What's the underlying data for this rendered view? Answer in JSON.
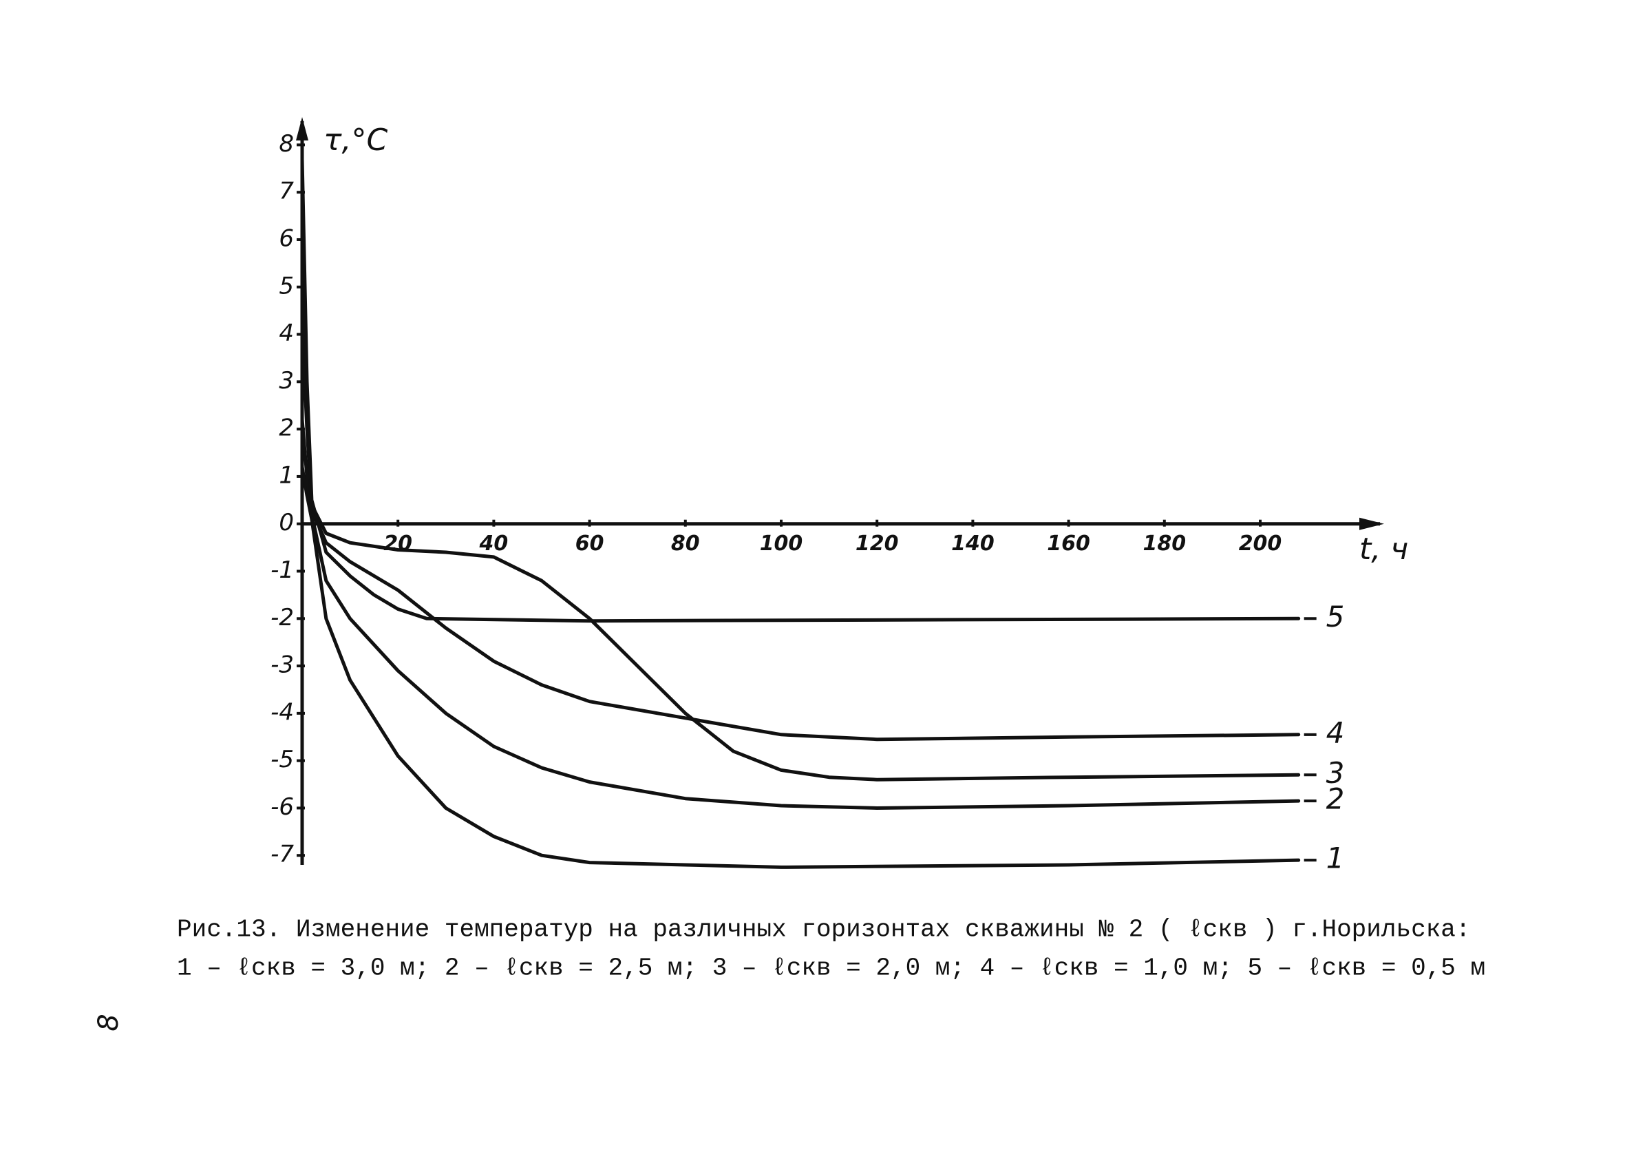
{
  "chart_data": {
    "type": "line",
    "y_label": "τ,°C",
    "x_label": "t, ч",
    "xlim": [
      0,
      225
    ],
    "ylim": [
      -7.2,
      8.5
    ],
    "xticks": [
      20,
      40,
      60,
      80,
      100,
      120,
      140,
      160,
      180,
      200
    ],
    "yticks": [
      -7,
      -6,
      -5,
      -4,
      -3,
      -2,
      -1,
      0,
      1,
      2,
      3,
      4,
      5,
      6,
      7,
      8
    ],
    "grid": false,
    "series": [
      {
        "name": "1",
        "color": "#111111",
        "x": [
          0,
          1,
          2,
          5,
          10,
          20,
          30,
          40,
          50,
          60,
          80,
          100,
          160,
          208
        ],
        "values": [
          1.2,
          0.6,
          0.1,
          -2.0,
          -3.3,
          -4.9,
          -6.0,
          -6.6,
          -7.0,
          -7.15,
          -7.2,
          -7.25,
          -7.2,
          -7.1
        ]
      },
      {
        "name": "2",
        "color": "#111111",
        "x": [
          0,
          1,
          2,
          5,
          10,
          20,
          30,
          40,
          50,
          60,
          80,
          100,
          120,
          160,
          208
        ],
        "values": [
          2.2,
          1.0,
          0.2,
          -1.2,
          -2.0,
          -3.1,
          -4.0,
          -4.7,
          -5.15,
          -5.45,
          -5.8,
          -5.95,
          -6.0,
          -5.95,
          -5.85
        ]
      },
      {
        "name": "3",
        "color": "#111111",
        "x": [
          0,
          1,
          2,
          5,
          10,
          20,
          30,
          40,
          50,
          60,
          70,
          80,
          90,
          100,
          110,
          120,
          160,
          208
        ],
        "values": [
          4.2,
          2.0,
          0.4,
          -0.2,
          -0.4,
          -0.55,
          -0.6,
          -0.7,
          -1.2,
          -2.0,
          -3.0,
          -4.0,
          -4.8,
          -5.2,
          -5.35,
          -5.4,
          -5.35,
          -5.3
        ]
      },
      {
        "name": "4",
        "color": "#111111",
        "x": [
          0,
          1,
          2,
          5,
          10,
          20,
          30,
          40,
          50,
          60,
          80,
          100,
          120,
          160,
          208
        ],
        "values": [
          5.5,
          2.2,
          0.3,
          -0.4,
          -0.8,
          -1.4,
          -2.2,
          -2.9,
          -3.4,
          -3.75,
          -4.1,
          -4.45,
          -4.55,
          -4.5,
          -4.45
        ]
      },
      {
        "name": "5",
        "color": "#111111",
        "x": [
          0,
          1,
          2,
          5,
          10,
          15,
          20,
          26,
          60,
          208
        ],
        "values": [
          7.7,
          3.0,
          0.5,
          -0.6,
          -1.1,
          -1.5,
          -1.8,
          -2.0,
          -2.05,
          -2.0
        ]
      }
    ]
  },
  "caption": {
    "line1": "Рис.13. Изменение температур на различных горизонтах скважины № 2 ( ℓскв ) г.Норильска:",
    "line2": "1 – ℓскв = 3,0 м; 2 – ℓскв = 2,5 м; 3 – ℓскв = 2,0 м; 4 – ℓскв = 1,0 м; 5 – ℓскв = 0,5 м"
  },
  "page_number": "8"
}
